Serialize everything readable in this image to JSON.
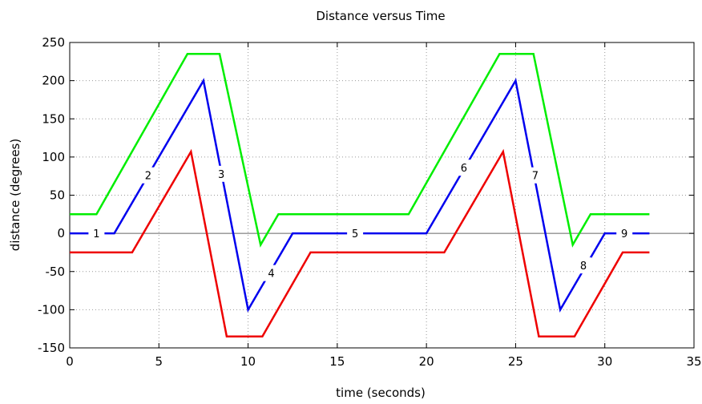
{
  "chart_data": {
    "type": "line",
    "title": "Distance versus Time",
    "xlabel": "time (seconds)",
    "ylabel": "distance (degrees)",
    "xlim": [
      0,
      35
    ],
    "ylim": [
      -150,
      250
    ],
    "xticks": [
      0,
      5,
      10,
      15,
      20,
      25,
      30,
      35
    ],
    "yticks": [
      -150,
      -100,
      -50,
      0,
      50,
      100,
      150,
      200,
      250
    ],
    "grid": true,
    "grid_style": "dotted",
    "zero_line": true,
    "series": [
      {
        "color": "#00ee00",
        "x": [
          0,
          1.5,
          6.6,
          8.4,
          10.7,
          11.7,
          19.0,
          24.1,
          26.0,
          28.2,
          29.2,
          32.5
        ],
        "y": [
          25,
          25,
          235,
          235,
          -15,
          25,
          25,
          235,
          235,
          -15,
          25,
          25
        ]
      },
      {
        "color": "#0000ee",
        "x": [
          0,
          2.5,
          7.5,
          10.0,
          12.5,
          20.0,
          25.0,
          27.5,
          30.0,
          32.5
        ],
        "y": [
          0,
          0,
          200,
          -100,
          0,
          0,
          200,
          -100,
          0,
          0
        ]
      },
      {
        "color": "#ee0000",
        "x": [
          0,
          3.5,
          6.8,
          8.8,
          10.8,
          13.5,
          21.0,
          24.3,
          26.3,
          28.3,
          31.0,
          32.5
        ],
        "y": [
          -25,
          -25,
          107,
          -135,
          -135,
          -25,
          -25,
          107,
          -135,
          -135,
          -25,
          -25
        ]
      }
    ],
    "annotations": [
      {
        "text": "1",
        "x": 1.5,
        "y": 0
      },
      {
        "text": "2",
        "x": 4.4,
        "y": 76
      },
      {
        "text": "3",
        "x": 8.5,
        "y": 78
      },
      {
        "text": "4",
        "x": 11.3,
        "y": -52
      },
      {
        "text": "5",
        "x": 16.0,
        "y": 0
      },
      {
        "text": "6",
        "x": 22.1,
        "y": 86
      },
      {
        "text": "7",
        "x": 26.1,
        "y": 76
      },
      {
        "text": "8",
        "x": 28.8,
        "y": -42
      },
      {
        "text": "9",
        "x": 31.1,
        "y": 0
      }
    ]
  }
}
